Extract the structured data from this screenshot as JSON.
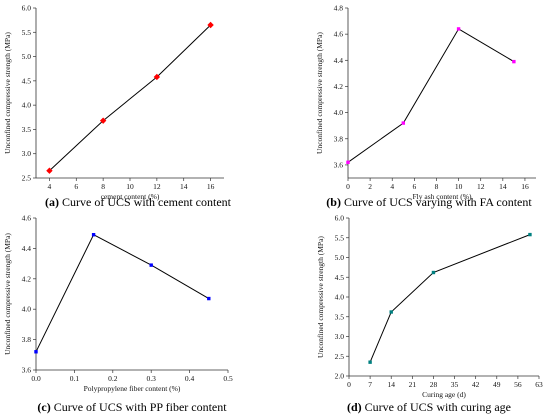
{
  "chart_data": [
    {
      "type": "line",
      "x": [
        4,
        8,
        12,
        16
      ],
      "values": [
        2.65,
        3.68,
        4.58,
        5.65
      ],
      "xlabel": "cement content (%)",
      "ylabel": "Unconfined compressive strength (MPa)",
      "xlim": [
        3,
        17
      ],
      "ylim": [
        2.5,
        6.0
      ],
      "xticks": [
        "4",
        "6",
        "8",
        "10",
        "12",
        "14",
        "16"
      ],
      "yticks": [
        "2.5",
        "3.0",
        "3.5",
        "4.0",
        "4.5",
        "5.0",
        "5.5",
        "6.0"
      ],
      "marker": "diamond",
      "marker_color": "#ff0000",
      "caption_letter": "(a)",
      "caption_text": " Curve of UCS with cement content"
    },
    {
      "type": "line",
      "x": [
        0,
        5,
        10,
        15
      ],
      "values": [
        3.62,
        3.92,
        4.64,
        4.39
      ],
      "xlabel": "Fly ash content (%)",
      "ylabel": "Unconfined compressive strength (MPa)",
      "xlim": [
        0,
        17
      ],
      "ylim": [
        3.5,
        4.8
      ],
      "xticks": [
        "0",
        "2",
        "4",
        "6",
        "8",
        "10",
        "12",
        "14",
        "16"
      ],
      "yticks": [
        "3.6",
        "3.8",
        "4.0",
        "4.2",
        "4.4",
        "4.6",
        "4.8"
      ],
      "marker": "square",
      "marker_color": "#ff00ff",
      "caption_letter": "(b)",
      "caption_text": " Curve of UCS varying with FA content"
    },
    {
      "type": "line",
      "x": [
        0,
        0.15,
        0.3,
        0.45
      ],
      "values": [
        3.72,
        4.49,
        4.29,
        4.07
      ],
      "xlabel": "Polypropylene fiber content (%)",
      "ylabel": "Unconfined compressive strength (MPa)",
      "xlim": [
        0,
        0.5
      ],
      "ylim": [
        3.6,
        4.6
      ],
      "xticks": [
        "0.0",
        "0.1",
        "0.2",
        "0.3",
        "0.4",
        "0.5"
      ],
      "yticks": [
        "3.6",
        "3.8",
        "4.0",
        "4.2",
        "4.4",
        "4.6"
      ],
      "marker": "square",
      "marker_color": "#0000ff",
      "caption_letter": "(c)",
      "caption_text": " Curve of UCS with PP fiber content"
    },
    {
      "type": "line",
      "x": [
        7,
        14,
        28,
        60
      ],
      "values": [
        2.35,
        3.62,
        4.62,
        5.58
      ],
      "xlabel": "Curing age (d)",
      "ylabel": "Unconfined compressive strength (MPa)",
      "xlim": [
        0,
        63
      ],
      "ylim": [
        2.0,
        6.0
      ],
      "xticks": [
        "0",
        "7",
        "14",
        "21",
        "28",
        "35",
        "42",
        "49",
        "56",
        "63"
      ],
      "yticks": [
        "2.0",
        "2.5",
        "3.0",
        "3.5",
        "4.0",
        "4.5",
        "5.0",
        "5.5",
        "6.0"
      ],
      "marker": "square",
      "marker_color": "#008080",
      "caption_letter": "(d)",
      "caption_text": " Curve of UCS with curing age"
    }
  ]
}
